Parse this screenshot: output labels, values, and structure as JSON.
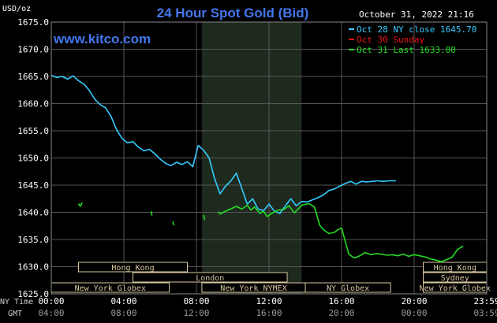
{
  "chart_data": {
    "type": "line",
    "title": "24 Hour Spot Gold (Bid)",
    "website": "www.kitco.com",
    "ylabel": "USD/oz",
    "timestamp": "October 31, 2022 21:16",
    "ylim": [
      1625,
      1675
    ],
    "y_ticks": [
      "1675.0",
      "1670.0",
      "1665.0",
      "1660.0",
      "1655.0",
      "1650.0",
      "1645.0",
      "1640.0",
      "1635.0",
      "1630.0",
      "1625.0"
    ],
    "x_tz_labels": [
      "NY Time",
      "GMT"
    ],
    "ny_ticks": [
      "00:00",
      "04:00",
      "08:00",
      "12:00",
      "16:00",
      "20:00",
      "23:59"
    ],
    "gmt_ticks": [
      "04:00",
      "08:00",
      "12:00",
      "16:00",
      "20:00",
      "00:00",
      "03:59"
    ],
    "legend": [
      {
        "label": "Oct 28 NY close 1645.70",
        "color": "#33ccff"
      },
      {
        "label": "Oct 30 Sunday",
        "color": "#ee1111"
      },
      {
        "label": "Oct 31 Last 1633.80",
        "color": "#22dd22"
      }
    ],
    "series": [
      {
        "name": "Oct 28",
        "color": "#33ccff",
        "x_hours": [
          0,
          0.3,
          0.6,
          0.9,
          1.2,
          1.5,
          1.8,
          2.1,
          2.4,
          2.7,
          3.0,
          3.3,
          3.6,
          3.9,
          4.2,
          4.5,
          4.8,
          5.1,
          5.4,
          5.7,
          6.0,
          6.3,
          6.6,
          6.9,
          7.2,
          7.5,
          7.8,
          8.1,
          8.4,
          8.7,
          9.0,
          9.3,
          9.6,
          9.9,
          10.2,
          10.5,
          10.8,
          11.1,
          11.4,
          11.7,
          12.0,
          12.3,
          12.6,
          12.9,
          13.2,
          13.5,
          13.8,
          14.1,
          14.4,
          14.7,
          15.0,
          15.3,
          15.6,
          15.9,
          16.2,
          16.5,
          16.8,
          17.1,
          17.4,
          17.7,
          18.0,
          18.3,
          18.6,
          19.0
        ],
        "values": [
          1665.2,
          1664.8,
          1665.0,
          1664.5,
          1665.1,
          1664.2,
          1663.6,
          1662.4,
          1660.8,
          1659.8,
          1659.2,
          1657.6,
          1655.2,
          1653.6,
          1652.8,
          1653.0,
          1652.0,
          1651.3,
          1651.6,
          1650.8,
          1649.8,
          1649.0,
          1648.6,
          1649.2,
          1648.8,
          1649.3,
          1648.4,
          1652.3,
          1651.4,
          1650.0,
          1646.2,
          1643.4,
          1644.8,
          1645.8,
          1647.2,
          1644.4,
          1641.5,
          1642.5,
          1640.6,
          1640.3,
          1641.5,
          1640.2,
          1639.8,
          1641.2,
          1642.5,
          1641.2,
          1642.0,
          1641.9,
          1642.3,
          1642.7,
          1643.2,
          1644.0,
          1644.3,
          1644.8,
          1645.3,
          1645.7,
          1645.2,
          1645.7,
          1645.6,
          1645.7,
          1645.8,
          1645.7,
          1645.8,
          1645.8
        ]
      },
      {
        "name": "Oct 31",
        "color": "#22dd22",
        "x_hours": [
          1.5,
          1.6,
          1.7,
          5.5,
          5.55,
          6.7,
          6.75,
          8.4,
          8.45,
          9.2,
          9.3,
          9.6,
          10.0,
          10.2,
          10.5,
          10.8,
          11.0,
          11.2,
          11.5,
          11.7,
          11.9,
          12.2,
          12.5,
          12.8,
          13.1,
          13.4,
          13.6,
          13.8,
          14.2,
          14.5,
          14.8,
          15.0,
          15.3,
          15.6,
          15.8,
          16.0,
          16.4,
          16.7,
          17.0,
          17.3,
          17.6,
          17.9,
          18.2,
          18.5,
          18.8,
          19.1,
          19.4,
          19.7,
          20.0,
          20.3,
          20.6,
          20.9,
          21.2,
          21.5,
          21.8,
          22.1,
          22.4,
          22.7
        ],
        "values": [
          1641.6,
          1641.1,
          1641.8,
          1640.2,
          1639.4,
          1638.3,
          1637.6,
          1639.5,
          1638.6,
          1640.1,
          1639.7,
          1640.2,
          1640.8,
          1641.1,
          1640.6,
          1641.3,
          1640.4,
          1641.0,
          1639.8,
          1640.2,
          1639.2,
          1639.9,
          1640.4,
          1640.5,
          1641.2,
          1639.9,
          1640.6,
          1641.3,
          1641.6,
          1641.0,
          1637.6,
          1636.8,
          1636.1,
          1636.3,
          1636.8,
          1637.1,
          1632.3,
          1631.6,
          1632.0,
          1632.6,
          1632.2,
          1632.4,
          1632.3,
          1632.1,
          1632.2,
          1632.0,
          1632.3,
          1631.9,
          1632.2,
          1632.0,
          1631.8,
          1631.4,
          1631.2,
          1630.9,
          1631.3,
          1631.8,
          1633.2,
          1633.8
        ]
      }
    ],
    "markets": [
      {
        "label": "Hong Kong",
        "start_h": 1.5,
        "end_h": 7.5,
        "row": 0
      },
      {
        "label": "London",
        "start_h": 4.5,
        "end_h": 13.0,
        "row": 1
      },
      {
        "label": "New York Globex",
        "start_h": 0.0,
        "end_h": 6.5,
        "row": 2
      },
      {
        "label": "New York NYMEX",
        "start_h": 8.3,
        "end_h": 14.0,
        "row": 2
      },
      {
        "label": "NY Globex",
        "start_h": 14.0,
        "end_h": 18.7,
        "row": 2
      },
      {
        "label": "Hong Kong",
        "start_h": 20.5,
        "end_h": 24.0,
        "row": 0
      },
      {
        "label": "Sydney",
        "start_h": 20.5,
        "end_h": 24.0,
        "row": 1
      },
      {
        "label": "New York Globex",
        "start_h": 20.5,
        "end_h": 24.0,
        "row": 2
      }
    ],
    "shaded_session_h": [
      8.3,
      13.8
    ],
    "grid": true
  }
}
